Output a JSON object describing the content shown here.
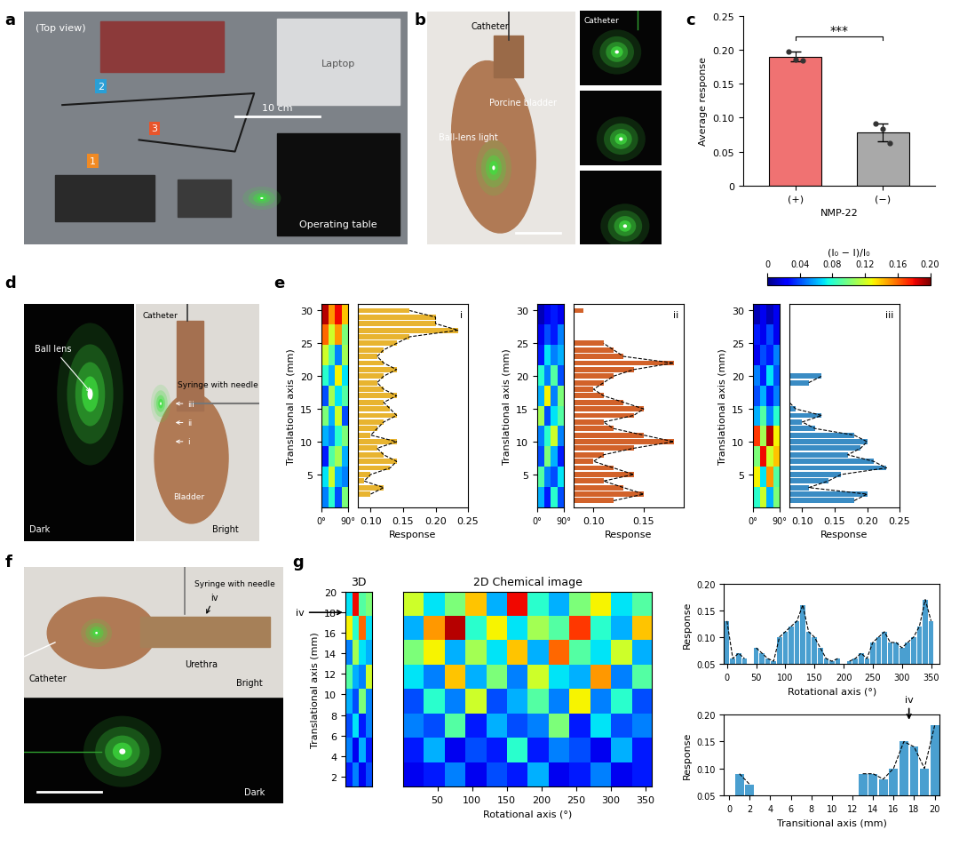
{
  "panel_labels": [
    "a",
    "b",
    "c",
    "d",
    "e",
    "f",
    "g"
  ],
  "photos": {
    "a": {
      "top_view": "(Top view)",
      "laptop": "Laptop",
      "scale": "10 cm",
      "table": "Operating table",
      "markers": [
        "1",
        "2",
        "3"
      ]
    },
    "b": {
      "catheter": "Catheter",
      "bladder": "Porcine bladder",
      "light": "Ball-lens light",
      "inset_catheter": "Catheter"
    },
    "d": {
      "dark": "Dark",
      "ball_lens": "Ball lens",
      "catheter": "Catheter",
      "syringe": "Syringe with needle",
      "bladder": "Bladder",
      "bright": "Bright",
      "sites": [
        "i",
        "ii",
        "iii"
      ]
    },
    "f": {
      "syringe": "Syringe with needle",
      "site": "iv",
      "urethra": "Urethra",
      "catheter": "Catheter",
      "bright": "Bright",
      "dark": "Dark"
    }
  },
  "colorbar": {
    "label": "(I₀ − I)/I₀",
    "range": [
      0,
      0.2
    ],
    "ticks": [
      0,
      0.04,
      0.08,
      0.12,
      0.16,
      {
        "value": 0.2,
        "label": "0.20"
      }
    ]
  },
  "chart_data": [
    {
      "type": "bar",
      "categories": [
        "(+)",
        "(−)"
      ],
      "values": [
        0.19,
        0.078
      ],
      "errors": [
        0.007,
        0.013
      ],
      "points": [
        [
          0.197,
          0.186,
          0.185
        ],
        [
          0.091,
          0.084,
          0.063
        ]
      ],
      "colors": [
        "#f07272",
        "#a9a9a9"
      ],
      "ylabel": "Average response",
      "xlabel": "NMP-22",
      "ylim": [
        0,
        0.25
      ],
      "yticks": [
        0,
        0.05,
        {
          "value": 0.1,
          "label": "0.10"
        },
        0.15,
        {
          "value": 0.2,
          "label": "0.20"
        },
        0.25
      ],
      "annotations": [
        "***"
      ]
    },
    {
      "type": "heatmap",
      "cells": [
        [
          0.05,
          0.08,
          0.04,
          0.1
        ],
        [
          0.07,
          0.12,
          0.06,
          0.05
        ],
        [
          0.03,
          0.09,
          0.11,
          0.06
        ],
        [
          0.06,
          0.05,
          0.08,
          0.1
        ],
        [
          0.1,
          0.06,
          0.12,
          0.04
        ],
        [
          0.04,
          0.11,
          0.07,
          0.09
        ],
        [
          0.08,
          0.06,
          0.13,
          0.07
        ],
        [
          0.12,
          0.09,
          0.05,
          0.11
        ],
        [
          0.16,
          0.12,
          0.15,
          0.1
        ],
        [
          0.19,
          0.15,
          0.18,
          0.14
        ]
      ],
      "xlim": [
        0,
        90
      ],
      "xticks": [
        {
          "value": 0,
          "label": "0°"
        },
        {
          "value": 90,
          "label": "90°"
        }
      ],
      "ylim": [
        0,
        31
      ],
      "yticks": [
        5,
        10,
        15,
        20,
        25,
        30
      ],
      "ylabel": "Translational axis (mm)"
    },
    {
      "type": "bar",
      "orientation": "horizontal",
      "subtitle": "i",
      "color": "#e8b430",
      "x": [
        1,
        2,
        3,
        4,
        5,
        6,
        7,
        8,
        9,
        10,
        11,
        12,
        13,
        14,
        15,
        16,
        17,
        18,
        19,
        20,
        21,
        22,
        23,
        24,
        25,
        26,
        27,
        28,
        29,
        30
      ],
      "values": [
        null,
        0.1,
        0.12,
        0.09,
        0.1,
        0.13,
        0.14,
        0.12,
        0.11,
        0.14,
        0.1,
        0.11,
        0.12,
        0.14,
        0.13,
        0.12,
        0.14,
        0.12,
        0.11,
        0.12,
        0.14,
        0.12,
        0.11,
        0.12,
        0.14,
        0.16,
        0.235,
        0.2,
        0.2,
        0.16
      ],
      "xlabel": "Response",
      "xlim": [
        0.08,
        0.25
      ],
      "xticks": [
        {
          "value": 0.1,
          "label": "0.10"
        },
        0.15,
        {
          "value": 0.2,
          "label": "0.20"
        },
        0.25
      ],
      "ylim": [
        0,
        31
      ],
      "tick_labels": "x"
    },
    {
      "type": "heatmap",
      "cells": [
        [
          0.06,
          0.03,
          0.08,
          0.04
        ],
        [
          0.09,
          0.05,
          0.04,
          0.07
        ],
        [
          0.04,
          0.1,
          0.06,
          0.03
        ],
        [
          0.05,
          0.08,
          0.12,
          0.05
        ],
        [
          0.11,
          0.04,
          0.07,
          0.09
        ],
        [
          0.06,
          0.13,
          0.05,
          0.1
        ],
        [
          0.08,
          0.05,
          0.09,
          0.04
        ],
        [
          0.03,
          0.07,
          0.05,
          0.06
        ],
        [
          0.02,
          0.04,
          0.03,
          0.05
        ],
        [
          0.01,
          0.02,
          0.03,
          0.02
        ]
      ],
      "xlim": [
        0,
        90
      ],
      "xticks": [
        {
          "value": 0,
          "label": "0°"
        },
        {
          "value": 90,
          "label": "90°"
        }
      ],
      "ylim": [
        0,
        31
      ],
      "yticks": [
        5,
        10,
        15,
        20,
        25,
        30
      ],
      "ylabel": "Translational axis (mm)"
    },
    {
      "type": "bar",
      "orientation": "horizontal",
      "subtitle": "ii",
      "color": "#d2622a",
      "x": [
        1,
        2,
        3,
        4,
        5,
        6,
        7,
        8,
        9,
        10,
        11,
        12,
        13,
        14,
        15,
        16,
        17,
        18,
        19,
        20,
        21,
        22,
        23,
        24,
        25,
        26,
        27,
        28,
        29,
        30
      ],
      "values": [
        0.12,
        0.15,
        0.13,
        0.11,
        0.14,
        0.12,
        0.1,
        0.11,
        0.14,
        0.18,
        0.15,
        0.12,
        0.11,
        0.14,
        0.15,
        0.13,
        0.11,
        0.1,
        0.11,
        0.12,
        0.14,
        0.18,
        0.13,
        0.12,
        0.11,
        null,
        null,
        null,
        null,
        0.09
      ],
      "xlabel": "Response",
      "xlim": [
        0.08,
        0.19
      ],
      "xticks": [
        {
          "value": 0.1,
          "label": "0.10"
        },
        0.15
      ],
      "ylim": [
        0,
        31
      ],
      "tick_labels": "x"
    },
    {
      "type": "heatmap",
      "cells": [
        [
          0.08,
          0.12,
          0.06,
          0.1
        ],
        [
          0.13,
          0.07,
          0.15,
          0.09
        ],
        [
          0.1,
          0.18,
          0.12,
          0.14
        ],
        [
          0.17,
          0.11,
          0.19,
          0.13
        ],
        [
          0.06,
          0.09,
          0.05,
          0.08
        ],
        [
          0.04,
          0.06,
          0.03,
          0.05
        ],
        [
          0.05,
          0.03,
          0.07,
          0.04
        ],
        [
          0.02,
          0.04,
          0.03,
          0.05
        ],
        [
          0.03,
          0.02,
          0.04,
          0.02
        ],
        [
          0.01,
          0.02,
          0.01,
          0.02
        ]
      ],
      "xlim": [
        0,
        90
      ],
      "xticks": [
        {
          "value": 0,
          "label": "0°"
        },
        {
          "value": 90,
          "label": "90°"
        }
      ],
      "ylim": [
        0,
        31
      ],
      "yticks": [
        5,
        10,
        15,
        20,
        25,
        30
      ],
      "ylabel": "Translational axis (mm)"
    },
    {
      "type": "bar",
      "orientation": "horizontal",
      "subtitle": "iii",
      "color": "#3a8cc4",
      "x": [
        1,
        2,
        3,
        4,
        5,
        6,
        7,
        8,
        9,
        10,
        11,
        12,
        13,
        14,
        15,
        16,
        17,
        18,
        19,
        20,
        21,
        22,
        23,
        24,
        25,
        26,
        27,
        28,
        29,
        30
      ],
      "values": [
        0.18,
        0.2,
        0.11,
        0.14,
        0.16,
        0.23,
        0.21,
        0.17,
        0.19,
        0.2,
        0.18,
        0.12,
        0.1,
        0.13,
        0.09,
        0.08,
        null,
        null,
        0.11,
        0.13,
        null,
        null,
        null,
        null,
        null,
        null,
        null,
        null,
        null,
        null
      ],
      "xlabel": "Response",
      "xlim": [
        0.08,
        0.25
      ],
      "xticks": [
        {
          "value": 0.1,
          "label": "0.10"
        },
        0.15,
        {
          "value": 0.2,
          "label": "0.20"
        },
        0.25
      ],
      "ylim": [
        0,
        31
      ],
      "tick_labels": "x"
    },
    {
      "type": "heatmap",
      "title": "3D",
      "cells": [
        [
          0.03,
          0.05,
          0.02,
          0.04
        ],
        [
          0.05,
          0.02,
          0.06,
          0.03
        ],
        [
          0.04,
          0.07,
          0.03,
          0.05
        ],
        [
          0.06,
          0.04,
          0.1,
          0.05
        ],
        [
          0.09,
          0.06,
          0.05,
          0.12
        ],
        [
          0.05,
          0.11,
          0.07,
          0.06
        ],
        [
          0.13,
          0.08,
          0.16,
          0.07
        ],
        [
          0.07,
          0.18,
          0.09,
          0.1
        ]
      ],
      "xlim": [
        0,
        360
      ],
      "ylim": [
        1,
        20
      ],
      "yticks": [
        2,
        4,
        6,
        8,
        10,
        12,
        14,
        16,
        18,
        20
      ],
      "ylabel": "Translational axis (mm)",
      "tick_labels": "y",
      "annotations": [
        {
          "text": "iv",
          "y": 18
        }
      ]
    },
    {
      "type": "heatmap",
      "title": "2D Chemical image",
      "cells": [
        [
          0.02,
          0.03,
          0.05,
          0.02,
          0.04,
          0.03,
          0.06,
          0.02,
          0.03,
          0.05,
          0.02,
          0.03
        ],
        [
          0.03,
          0.06,
          0.02,
          0.04,
          0.03,
          0.08,
          0.03,
          0.05,
          0.04,
          0.02,
          0.06,
          0.03
        ],
        [
          0.05,
          0.04,
          0.09,
          0.03,
          0.06,
          0.04,
          0.05,
          0.1,
          0.03,
          0.07,
          0.04,
          0.05
        ],
        [
          0.04,
          0.08,
          0.05,
          0.12,
          0.04,
          0.06,
          0.09,
          0.05,
          0.13,
          0.05,
          0.08,
          0.04
        ],
        [
          0.07,
          0.05,
          0.14,
          0.06,
          0.1,
          0.05,
          0.12,
          0.07,
          0.06,
          0.15,
          0.05,
          0.09
        ],
        [
          0.1,
          0.13,
          0.06,
          0.11,
          0.07,
          0.14,
          0.06,
          0.16,
          0.09,
          0.07,
          0.12,
          0.06
        ],
        [
          0.06,
          0.15,
          0.19,
          0.08,
          0.13,
          0.07,
          0.11,
          0.09,
          0.17,
          0.08,
          0.06,
          0.14
        ],
        [
          0.12,
          0.07,
          0.1,
          0.14,
          0.06,
          0.18,
          0.08,
          0.06,
          0.1,
          0.13,
          0.07,
          0.09
        ]
      ],
      "xlim": [
        0,
        360
      ],
      "xticks": [
        50,
        100,
        150,
        200,
        250,
        300,
        350
      ],
      "ylim": [
        1,
        20
      ],
      "xlabel": "Rotational axis (°)",
      "tick_labels": "x"
    },
    {
      "type": "bar",
      "color": "#4a9fd0",
      "x": [
        0,
        10,
        20,
        30,
        40,
        50,
        60,
        70,
        80,
        90,
        100,
        110,
        120,
        130,
        140,
        150,
        160,
        170,
        180,
        190,
        200,
        210,
        220,
        230,
        240,
        250,
        260,
        270,
        280,
        290,
        300,
        310,
        320,
        330,
        340,
        350
      ],
      "values": [
        0.13,
        0.06,
        0.07,
        0.06,
        null,
        0.08,
        0.07,
        0.06,
        0.055,
        0.1,
        0.11,
        0.12,
        0.13,
        0.16,
        0.11,
        0.1,
        0.08,
        0.06,
        0.055,
        0.06,
        null,
        0.055,
        0.06,
        0.07,
        0.06,
        0.09,
        0.1,
        0.11,
        0.09,
        0.09,
        0.08,
        0.09,
        0.1,
        0.12,
        0.17,
        0.13
      ],
      "xlabel": "Rotational axis (°)",
      "ylabel": "Response",
      "xlim": [
        -5,
        365
      ],
      "xticks": [
        0,
        50,
        100,
        150,
        200,
        250,
        300,
        350
      ],
      "ylim": [
        0.05,
        0.2
      ],
      "yticks": [
        0.05,
        {
          "value": 0.1,
          "label": "0.10"
        },
        0.15,
        {
          "value": 0.2,
          "label": "0.20"
        }
      ]
    },
    {
      "type": "bar",
      "color": "#4a9fd0",
      "x": [
        0,
        1,
        2,
        3,
        4,
        5,
        6,
        7,
        8,
        9,
        10,
        11,
        12,
        13,
        14,
        15,
        16,
        17,
        18,
        19,
        20
      ],
      "values": [
        null,
        0.09,
        0.07,
        null,
        null,
        null,
        null,
        null,
        null,
        null,
        null,
        null,
        null,
        0.09,
        0.09,
        0.08,
        0.1,
        0.15,
        0.14,
        0.1,
        0.18
      ],
      "xlabel": "Transitional axis (mm)",
      "ylabel": "Response",
      "xlim": [
        -0.5,
        20.5
      ],
      "xticks": [
        0,
        2,
        4,
        6,
        8,
        10,
        12,
        14,
        16,
        18,
        20
      ],
      "ylim": [
        0.05,
        0.2
      ],
      "yticks": [
        0.05,
        {
          "value": 0.1,
          "label": "0.10"
        },
        0.15,
        {
          "value": 0.2,
          "label": "0.20"
        }
      ],
      "annotations": [
        {
          "text": "iv",
          "x": 17.5
        }
      ]
    }
  ]
}
